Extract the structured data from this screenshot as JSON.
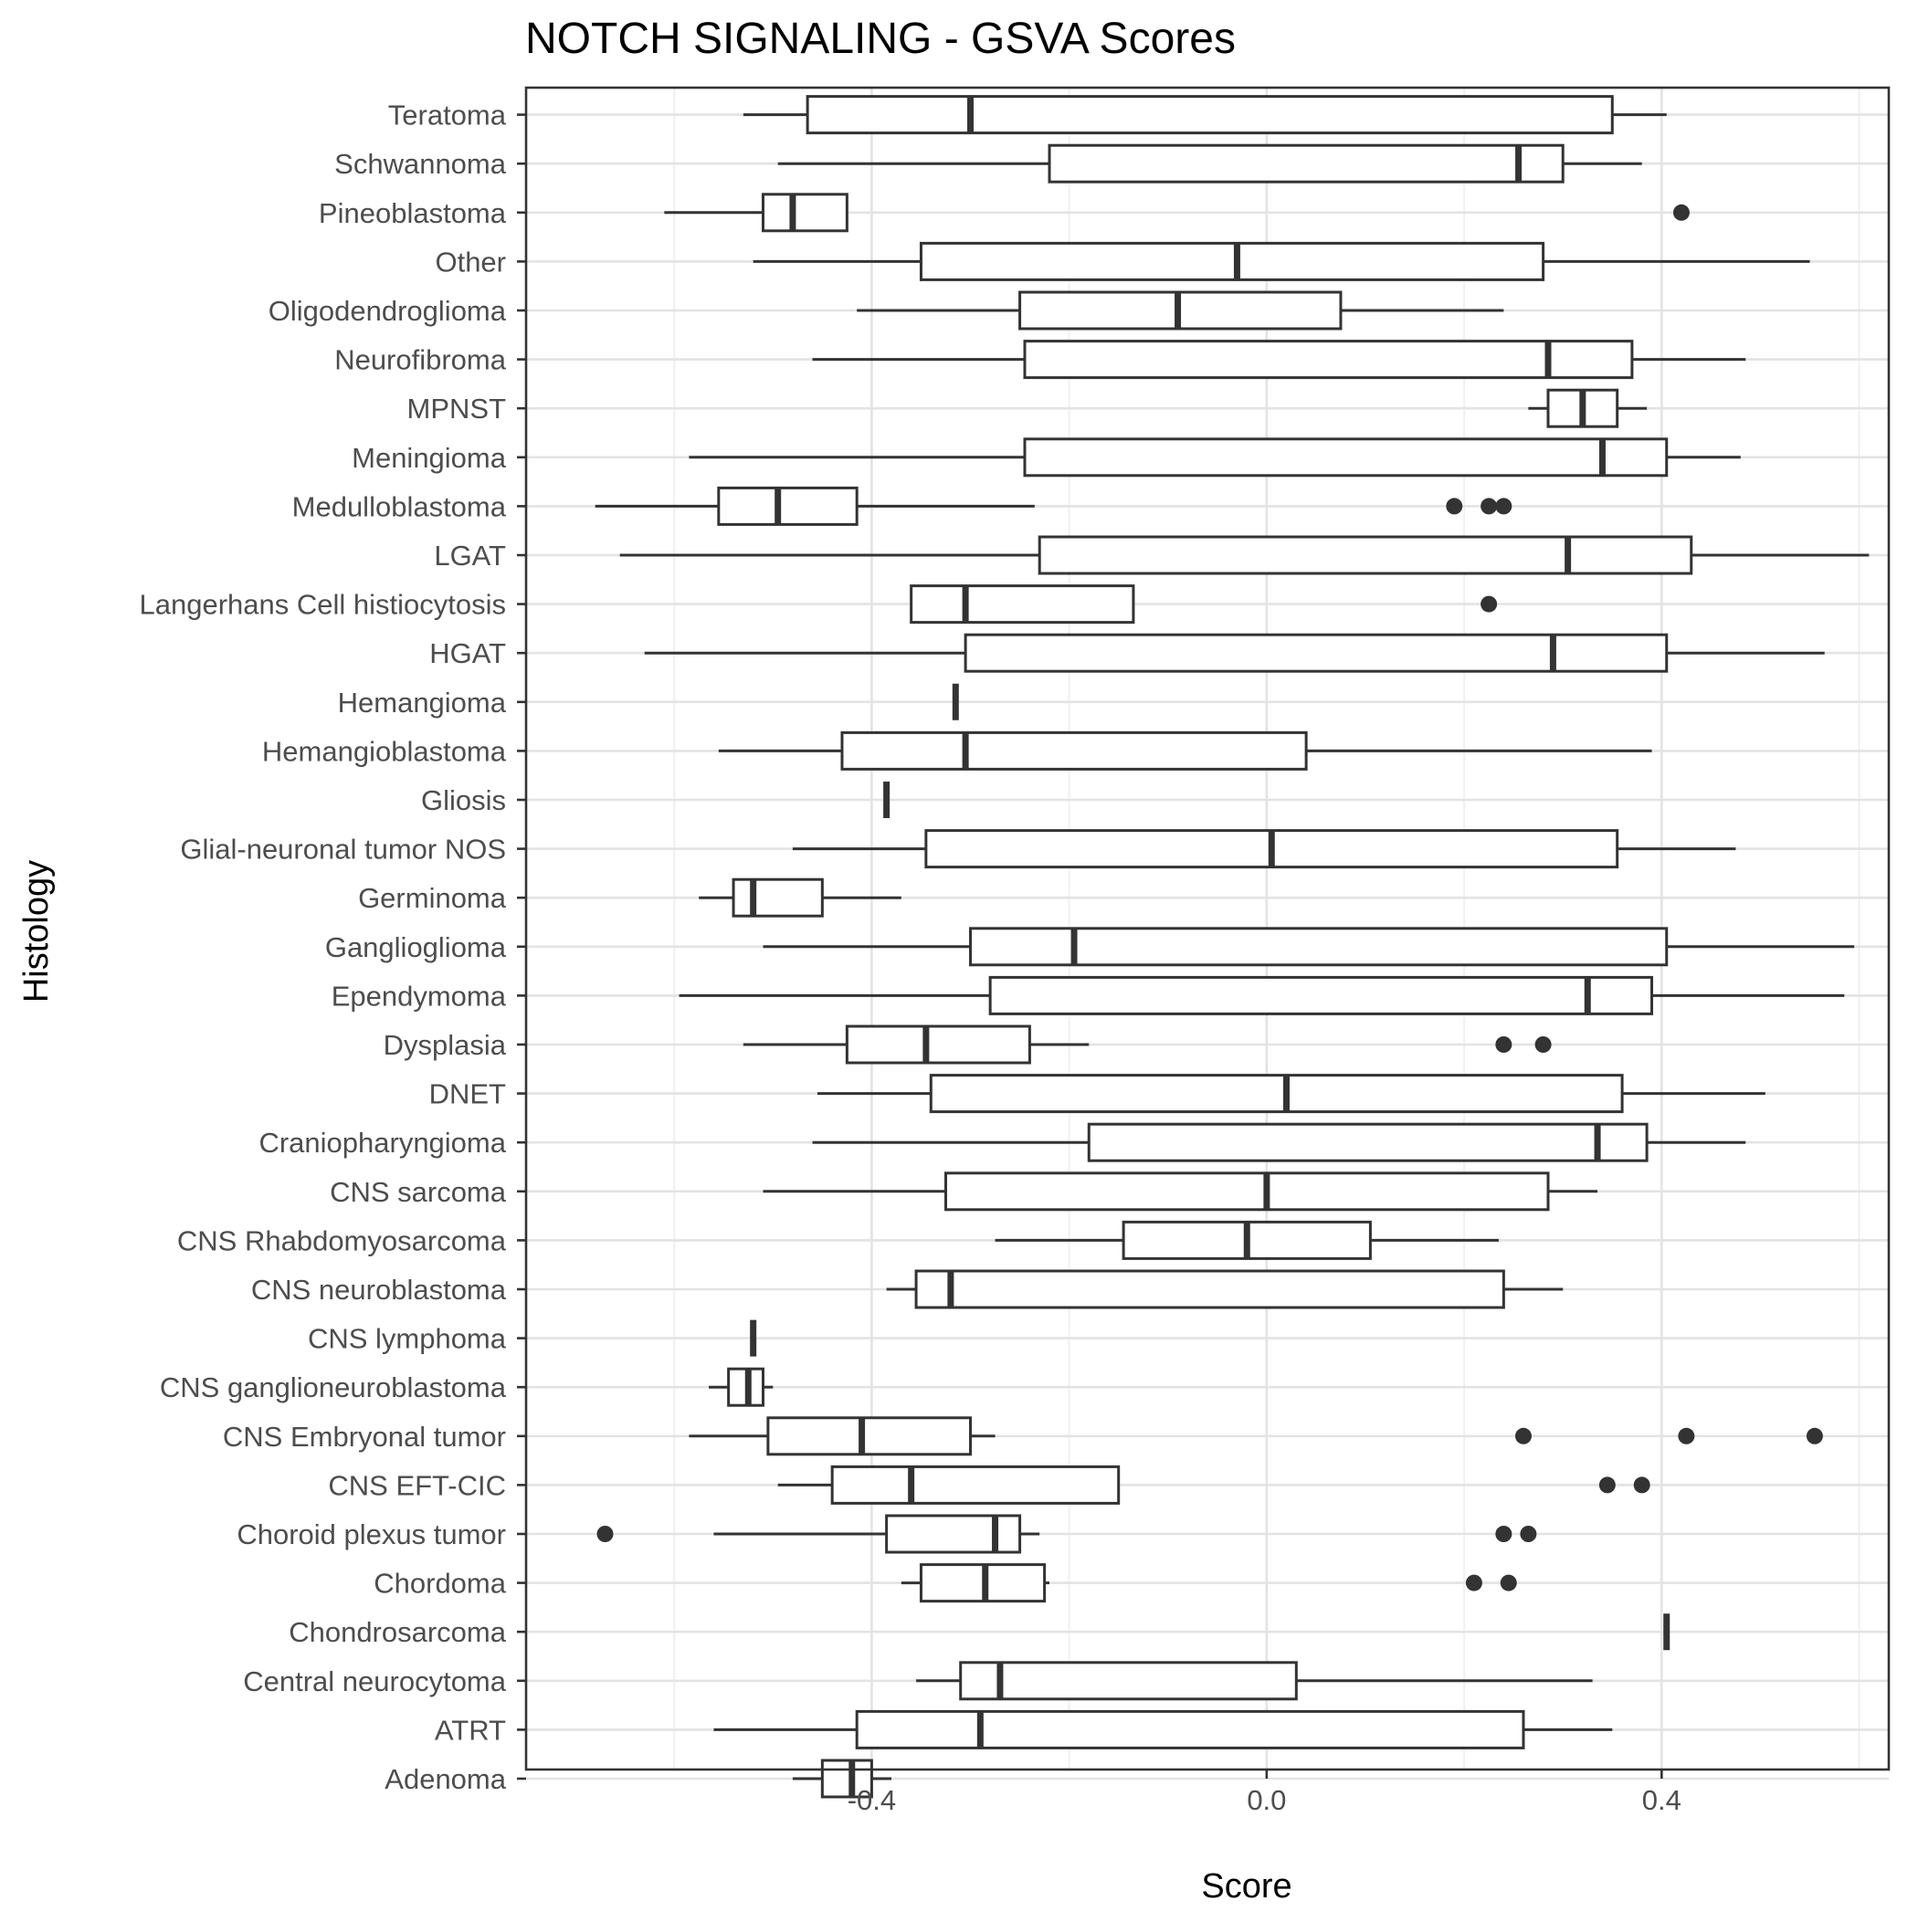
{
  "chart_data": {
    "type": "boxplot",
    "orientation": "horizontal",
    "title": "NOTCH SIGNALING - GSVA Scores",
    "xlabel": "Score",
    "ylabel": "Histology",
    "xlim": [
      -0.75,
      0.63
    ],
    "xticks": [
      -0.4,
      0.0,
      0.4
    ],
    "xtick_labels": [
      "-0.4",
      "0.0",
      "0.4"
    ],
    "grid": true,
    "legend": "none",
    "categories": [
      "Adenoma",
      "ATRT",
      "Central neurocytoma",
      "Chondrosarcoma",
      "Chordoma",
      "Choroid plexus tumor",
      "CNS EFT-CIC",
      "CNS Embryonal tumor",
      "CNS ganglioneuroblastoma",
      "CNS lymphoma",
      "CNS neuroblastoma",
      "CNS Rhabdomyosarcoma",
      "CNS sarcoma",
      "Craniopharyngioma",
      "DNET",
      "Dysplasia",
      "Ependymoma",
      "Ganglioglioma",
      "Germinoma",
      "Glial-neuronal tumor NOS",
      "Gliosis",
      "Hemangioblastoma",
      "Hemangioma",
      "HGAT",
      "Langerhans Cell histiocytosis",
      "LGAT",
      "Medulloblastoma",
      "Meningioma",
      "MPNST",
      "Neurofibroma",
      "Oligodendroglioma",
      "Other",
      "Pineoblastoma",
      "Schwannoma",
      "Teratoma"
    ],
    "boxes": [
      {
        "label": "Adenoma",
        "whisker_low": -0.48,
        "q1": -0.45,
        "median": -0.42,
        "q3": -0.4,
        "whisker_high": -0.38,
        "outliers": []
      },
      {
        "label": "ATRT",
        "whisker_low": -0.56,
        "q1": -0.415,
        "median": -0.29,
        "q3": 0.26,
        "whisker_high": 0.35,
        "outliers": []
      },
      {
        "label": "Central neurocytoma",
        "whisker_low": -0.355,
        "q1": -0.31,
        "median": -0.27,
        "q3": 0.03,
        "whisker_high": 0.33,
        "outliers": []
      },
      {
        "label": "Chondrosarcoma",
        "whisker_low": 0.405,
        "q1": 0.405,
        "median": 0.405,
        "q3": 0.405,
        "whisker_high": 0.405,
        "outliers": []
      },
      {
        "label": "Chordoma",
        "whisker_low": -0.37,
        "q1": -0.35,
        "median": -0.285,
        "q3": -0.225,
        "whisker_high": -0.22,
        "outliers": [
          0.21,
          0.245
        ]
      },
      {
        "label": "Choroid plexus tumor",
        "whisker_low": -0.56,
        "q1": -0.385,
        "median": -0.275,
        "q3": -0.25,
        "whisker_high": -0.23,
        "outliers": [
          -0.67,
          0.24,
          0.265
        ]
      },
      {
        "label": "CNS EFT-CIC",
        "whisker_low": -0.495,
        "q1": -0.44,
        "median": -0.36,
        "q3": -0.15,
        "whisker_high": -0.15,
        "outliers": [
          0.345,
          0.38
        ]
      },
      {
        "label": "CNS Embryonal tumor",
        "whisker_low": -0.585,
        "q1": -0.505,
        "median": -0.41,
        "q3": -0.3,
        "whisker_high": -0.275,
        "outliers": [
          0.26,
          0.425,
          0.555
        ]
      },
      {
        "label": "CNS ganglioneuroblastoma",
        "whisker_low": -0.565,
        "q1": -0.545,
        "median": -0.525,
        "q3": -0.51,
        "whisker_high": -0.5,
        "outliers": []
      },
      {
        "label": "CNS lymphoma",
        "whisker_low": -0.52,
        "q1": -0.52,
        "median": -0.52,
        "q3": -0.52,
        "whisker_high": -0.52,
        "outliers": []
      },
      {
        "label": "CNS neuroblastoma",
        "whisker_low": -0.385,
        "q1": -0.355,
        "median": -0.32,
        "q3": 0.24,
        "whisker_high": 0.3,
        "outliers": []
      },
      {
        "label": "CNS Rhabdomyosarcoma",
        "whisker_low": -0.275,
        "q1": -0.145,
        "median": -0.02,
        "q3": 0.105,
        "whisker_high": 0.235,
        "outliers": []
      },
      {
        "label": "CNS sarcoma",
        "whisker_low": -0.51,
        "q1": -0.325,
        "median": 0.0,
        "q3": 0.285,
        "whisker_high": 0.335,
        "outliers": []
      },
      {
        "label": "Craniopharyngioma",
        "whisker_low": -0.46,
        "q1": -0.18,
        "median": 0.335,
        "q3": 0.385,
        "whisker_high": 0.485,
        "outliers": []
      },
      {
        "label": "DNET",
        "whisker_low": -0.455,
        "q1": -0.34,
        "median": 0.02,
        "q3": 0.36,
        "whisker_high": 0.505,
        "outliers": []
      },
      {
        "label": "Dysplasia",
        "whisker_low": -0.53,
        "q1": -0.425,
        "median": -0.345,
        "q3": -0.24,
        "whisker_high": -0.18,
        "outliers": [
          0.24,
          0.28
        ]
      },
      {
        "label": "Ependymoma",
        "whisker_low": -0.595,
        "q1": -0.28,
        "median": 0.325,
        "q3": 0.39,
        "whisker_high": 0.585,
        "outliers": []
      },
      {
        "label": "Ganglioglioma",
        "whisker_low": -0.51,
        "q1": -0.3,
        "median": -0.195,
        "q3": 0.405,
        "whisker_high": 0.595,
        "outliers": []
      },
      {
        "label": "Germinoma",
        "whisker_low": -0.575,
        "q1": -0.54,
        "median": -0.52,
        "q3": -0.45,
        "whisker_high": -0.37,
        "outliers": []
      },
      {
        "label": "Glial-neuronal tumor NOS",
        "whisker_low": -0.48,
        "q1": -0.345,
        "median": 0.005,
        "q3": 0.355,
        "whisker_high": 0.475,
        "outliers": []
      },
      {
        "label": "Gliosis",
        "whisker_low": -0.385,
        "q1": -0.385,
        "median": -0.385,
        "q3": -0.385,
        "whisker_high": -0.385,
        "outliers": []
      },
      {
        "label": "Hemangioblastoma",
        "whisker_low": -0.555,
        "q1": -0.43,
        "median": -0.305,
        "q3": 0.04,
        "whisker_high": 0.39,
        "outliers": []
      },
      {
        "label": "Hemangioma",
        "whisker_low": -0.315,
        "q1": -0.315,
        "median": -0.315,
        "q3": -0.315,
        "whisker_high": -0.315,
        "outliers": []
      },
      {
        "label": "HGAT",
        "whisker_low": -0.63,
        "q1": -0.305,
        "median": 0.29,
        "q3": 0.405,
        "whisker_high": 0.565,
        "outliers": []
      },
      {
        "label": "Langerhans Cell histiocytosis",
        "whisker_low": -0.36,
        "q1": -0.36,
        "median": -0.305,
        "q3": -0.135,
        "whisker_high": -0.135,
        "outliers": [
          0.225
        ]
      },
      {
        "label": "LGAT",
        "whisker_low": -0.655,
        "q1": -0.23,
        "median": 0.305,
        "q3": 0.43,
        "whisker_high": 0.61,
        "outliers": []
      },
      {
        "label": "Medulloblastoma",
        "whisker_low": -0.68,
        "q1": -0.555,
        "median": -0.495,
        "q3": -0.415,
        "whisker_high": -0.235,
        "outliers": [
          0.19,
          0.225,
          0.24
        ]
      },
      {
        "label": "Meningioma",
        "whisker_low": -0.585,
        "q1": -0.245,
        "median": 0.34,
        "q3": 0.405,
        "whisker_high": 0.48,
        "outliers": []
      },
      {
        "label": "MPNST",
        "whisker_low": 0.265,
        "q1": 0.285,
        "median": 0.32,
        "q3": 0.355,
        "whisker_high": 0.385,
        "outliers": []
      },
      {
        "label": "Neurofibroma",
        "whisker_low": -0.46,
        "q1": -0.245,
        "median": 0.285,
        "q3": 0.37,
        "whisker_high": 0.485,
        "outliers": []
      },
      {
        "label": "Oligodendroglioma",
        "whisker_low": -0.415,
        "q1": -0.25,
        "median": -0.09,
        "q3": 0.075,
        "whisker_high": 0.24,
        "outliers": []
      },
      {
        "label": "Other",
        "whisker_low": -0.52,
        "q1": -0.35,
        "median": -0.03,
        "q3": 0.28,
        "whisker_high": 0.55,
        "outliers": []
      },
      {
        "label": "Pineoblastoma",
        "whisker_low": -0.61,
        "q1": -0.51,
        "median": -0.48,
        "q3": -0.425,
        "whisker_high": -0.425,
        "outliers": [
          0.42
        ]
      },
      {
        "label": "Schwannoma",
        "whisker_low": -0.495,
        "q1": -0.22,
        "median": 0.255,
        "q3": 0.3,
        "whisker_high": 0.38,
        "outliers": []
      },
      {
        "label": "Teratoma",
        "whisker_low": -0.53,
        "q1": -0.465,
        "median": -0.3,
        "q3": 0.35,
        "whisker_high": 0.405,
        "outliers": []
      }
    ]
  }
}
